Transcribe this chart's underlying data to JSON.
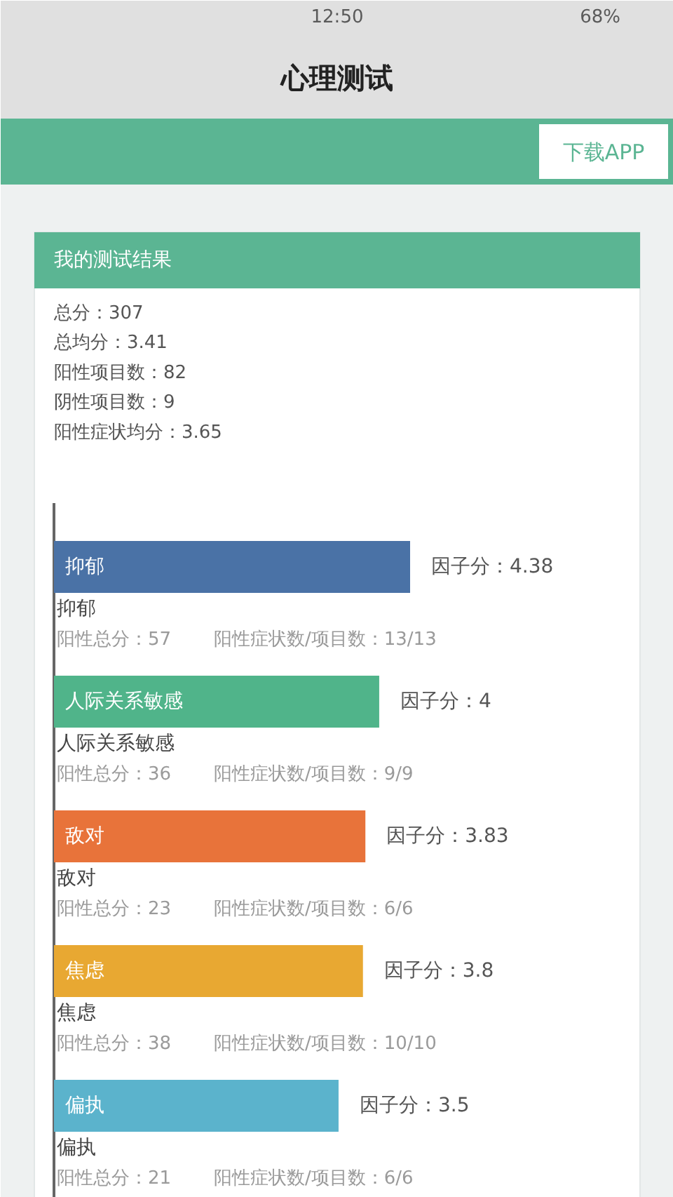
{
  "chart_data": {
    "type": "bar",
    "orientation": "horizontal",
    "title": "心理测试",
    "subtitle": "我的测试结果",
    "categories": [
      "抑郁",
      "人际关系敏感",
      "敌对",
      "焦虑",
      "偏执"
    ],
    "values": [
      4.38,
      4,
      3.83,
      3.8,
      3.5
    ],
    "colors": [
      "#4a72a6",
      "#50b48a",
      "#e8733a",
      "#e8a832",
      "#5bb3cc"
    ],
    "value_labels": [
      "因子分：4.38",
      "因子分：4",
      "因子分：3.83",
      "因子分：3.8",
      "因子分：3.5"
    ],
    "annotations": [
      "12:50",
      "68%",
      "下载APP",
      "总分：307",
      "总均分：3.41",
      "阳性项目数：82",
      "阴性项目数：9",
      "阳性症状均分：3.65",
      "抑郁",
      "阳性总分：57",
      "阳性症状数/项目数：13/13",
      "人际关系敏感",
      "阳性总分：36",
      "阳性症状数/项目数：9/9",
      "敌对",
      "阳性总分：23",
      "阳性症状数/项目数：6/6",
      "焦虑",
      "阳性总分：38",
      "阳性症状数/项目数：10/10",
      "偏执",
      "阳性总分：21",
      "阳性症状数/项目数：6/6"
    ]
  }
}
